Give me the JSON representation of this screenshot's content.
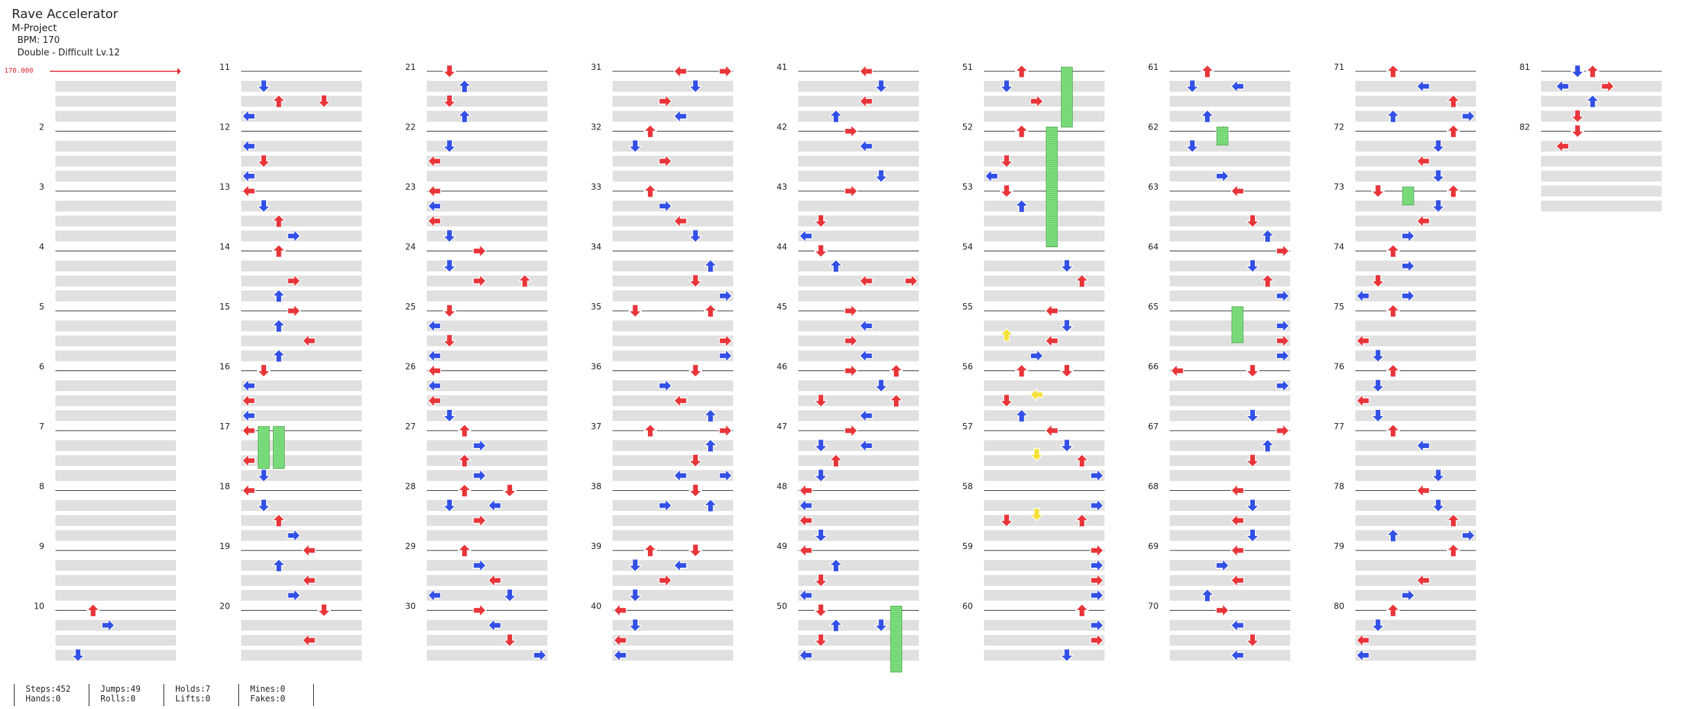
{
  "header": {
    "title": "Rave Accelerator",
    "artist": "M-Project",
    "bpm": "BPM: 170",
    "difficulty": "Double - Difficult  Lv.12"
  },
  "bpm_marker": "170.000",
  "measure_labels": [
    "2",
    "3",
    "4",
    "5",
    "6",
    "7",
    "8",
    "9",
    "10",
    "11",
    "12",
    "13",
    "14",
    "15",
    "16",
    "17",
    "18",
    "19",
    "20",
    "21",
    "22",
    "23",
    "24",
    "25",
    "26",
    "27",
    "28",
    "29",
    "30",
    "31",
    "32",
    "33",
    "34",
    "35",
    "36",
    "37",
    "38",
    "39",
    "40",
    "41",
    "42",
    "43",
    "44",
    "45",
    "46",
    "47",
    "48",
    "49",
    "50",
    "51",
    "52",
    "53",
    "54",
    "55",
    "56",
    "57",
    "58",
    "59",
    "60",
    "61",
    "62",
    "63",
    "64",
    "65",
    "66",
    "67",
    "68",
    "69",
    "70",
    "71",
    "72",
    "73",
    "74",
    "75",
    "76",
    "77",
    "78",
    "79",
    "80",
    "81",
    "82"
  ],
  "stats": {
    "steps": "Steps:452",
    "hands": "Hands:0",
    "jumps": "Jumps:49",
    "rolls": "Rolls:0",
    "holds": "Holds:7",
    "lifts": "Lifts:0",
    "mines": "Mines:0",
    "fakes": "Fakes:0"
  },
  "colors": {
    "arrow_red": "#e8353a",
    "arrow_blue": "#3350e6",
    "arrow_yellow": "#f4e23a",
    "hold_green": "#7fdf7f",
    "row_gray": "#e0e0e0",
    "bpm_red": "#e0242b"
  }
}
